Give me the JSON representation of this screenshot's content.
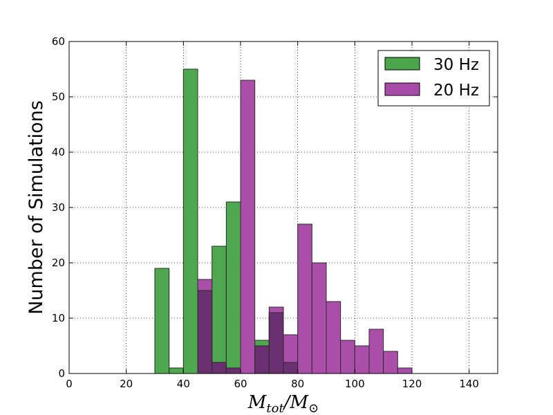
{
  "chart_data": {
    "type": "bar",
    "title": "",
    "xlabel": "M_tot/M_⊙",
    "xlabel_main": "M",
    "xlabel_sub": "tot",
    "xlabel_slash": "/M",
    "xlabel_sub2": "⊙",
    "ylabel": "Number of Simulations",
    "xlim": [
      0,
      150
    ],
    "ylim": [
      0,
      60
    ],
    "xticks": [
      0,
      20,
      40,
      60,
      80,
      100,
      120,
      140
    ],
    "yticks": [
      0,
      10,
      20,
      30,
      40,
      50,
      60
    ],
    "grid": true,
    "legend_position": "top-right",
    "bin_width": 5,
    "series": [
      {
        "name": "30 Hz",
        "color": "#4ba64b",
        "overlap_color": "#6a2f6e",
        "bins": [
          {
            "x0": 30,
            "x1": 35,
            "value": 19
          },
          {
            "x0": 35,
            "x1": 40,
            "value": 1
          },
          {
            "x0": 40,
            "x1": 45,
            "value": 55
          },
          {
            "x0": 45,
            "x1": 50,
            "value": 15
          },
          {
            "x0": 50,
            "x1": 55,
            "value": 23
          },
          {
            "x0": 55,
            "x1": 60,
            "value": 31
          },
          {
            "x0": 60,
            "x1": 65,
            "value": 0
          },
          {
            "x0": 65,
            "x1": 70,
            "value": 6
          },
          {
            "x0": 70,
            "x1": 75,
            "value": 11
          },
          {
            "x0": 75,
            "x1": 80,
            "value": 2
          }
        ]
      },
      {
        "name": "20 Hz",
        "color": "#a84aa8",
        "bins": [
          {
            "x0": 45,
            "x1": 50,
            "value": 17
          },
          {
            "x0": 50,
            "x1": 55,
            "value": 2
          },
          {
            "x0": 55,
            "x1": 60,
            "value": 1
          },
          {
            "x0": 60,
            "x1": 65,
            "value": 53
          },
          {
            "x0": 65,
            "x1": 70,
            "value": 5
          },
          {
            "x0": 70,
            "x1": 75,
            "value": 12
          },
          {
            "x0": 75,
            "x1": 80,
            "value": 7
          },
          {
            "x0": 80,
            "x1": 85,
            "value": 27
          },
          {
            "x0": 85,
            "x1": 90,
            "value": 20
          },
          {
            "x0": 90,
            "x1": 95,
            "value": 13
          },
          {
            "x0": 95,
            "x1": 100,
            "value": 6
          },
          {
            "x0": 100,
            "x1": 105,
            "value": 5
          },
          {
            "x0": 105,
            "x1": 110,
            "value": 8
          },
          {
            "x0": 110,
            "x1": 115,
            "value": 4
          },
          {
            "x0": 115,
            "x1": 120,
            "value": 1
          }
        ]
      }
    ]
  }
}
